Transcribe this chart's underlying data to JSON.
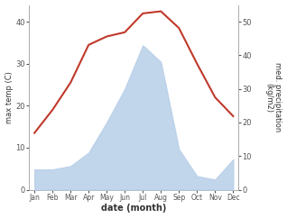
{
  "months": [
    "Jan",
    "Feb",
    "Mar",
    "Apr",
    "May",
    "Jun",
    "Jul",
    "Aug",
    "Sep",
    "Oct",
    "Nov",
    "Dec"
  ],
  "temperature": [
    13.5,
    19.0,
    25.5,
    34.5,
    36.5,
    37.5,
    42.0,
    42.5,
    38.5,
    30.0,
    22.0,
    17.5
  ],
  "precipitation": [
    6,
    6,
    7,
    11,
    20,
    30,
    43,
    38,
    12,
    4,
    3,
    9
  ],
  "temp_color": "#c0392b",
  "precip_fill_color": "#b8cfe8",
  "ylabel_left": "max temp (C)",
  "ylabel_right": "med. precipitation\n(kg/m2)",
  "xlabel": "date (month)",
  "ylim_left": [
    0,
    44
  ],
  "ylim_right": [
    0,
    55
  ],
  "yticks_left": [
    0,
    10,
    20,
    30,
    40
  ],
  "yticks_right": [
    0,
    10,
    20,
    30,
    40,
    50
  ],
  "bg_color": "#ffffff"
}
